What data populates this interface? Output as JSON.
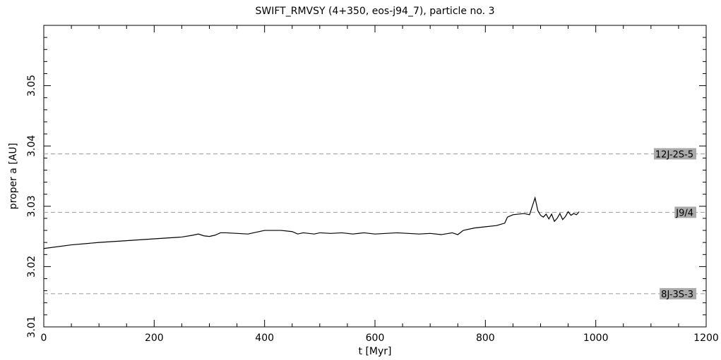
{
  "chart_data": {
    "type": "line",
    "title": "SWIFT_RMVSY (4+350, eos-j94_7), particle no. 3",
    "xlabel": "t [Myr]",
    "ylabel": "proper a [AU]",
    "xlim": [
      0,
      1200
    ],
    "ylim": [
      3.01,
      3.06
    ],
    "x_major_ticks": [
      0,
      200,
      400,
      600,
      800,
      1000,
      1200
    ],
    "x_tick_labels": [
      "0",
      "200",
      "400",
      "600",
      "800",
      "1000",
      "1200"
    ],
    "x_minor_step": 50,
    "y_major_ticks": [
      3.01,
      3.02,
      3.03,
      3.04,
      3.05
    ],
    "y_tick_labels": [
      "3.01",
      "3.02",
      "3.03",
      "3.04",
      "3.05"
    ],
    "y_minor_step": 0.002,
    "grid": false,
    "reference_lines": [
      {
        "label": "12J-2S-5",
        "y": 3.0387
      },
      {
        "label": "J9/4",
        "y": 3.029
      },
      {
        "label": "8J-3S-3",
        "y": 3.0155
      }
    ],
    "series": [
      {
        "x": [
          0,
          50,
          100,
          150,
          200,
          250,
          270,
          280,
          290,
          300,
          310,
          320,
          330,
          350,
          370,
          380,
          400,
          430,
          450,
          460,
          470,
          490,
          500,
          520,
          540,
          560,
          580,
          600,
          620,
          640,
          660,
          680,
          700,
          720,
          740,
          750,
          760,
          780,
          800,
          820,
          835,
          840,
          850,
          860,
          870,
          880,
          885,
          890,
          895,
          900,
          905,
          910,
          915,
          920,
          925,
          930,
          935,
          940,
          945,
          950,
          955,
          960,
          965,
          970
        ],
        "y": [
          3.023,
          3.0236,
          3.024,
          3.0243,
          3.0246,
          3.0249,
          3.0252,
          3.0254,
          3.0251,
          3.025,
          3.0252,
          3.0256,
          3.0256,
          3.0255,
          3.0254,
          3.0256,
          3.026,
          3.026,
          3.0258,
          3.0254,
          3.0256,
          3.0254,
          3.0256,
          3.0255,
          3.0256,
          3.0254,
          3.0256,
          3.0254,
          3.0255,
          3.0256,
          3.0255,
          3.0254,
          3.0255,
          3.0253,
          3.0256,
          3.0253,
          3.026,
          3.0264,
          3.0266,
          3.0268,
          3.0272,
          3.0282,
          3.0286,
          3.0287,
          3.0288,
          3.0286,
          3.03,
          3.0314,
          3.0293,
          3.0285,
          3.0282,
          3.0287,
          3.0279,
          3.0287,
          3.0275,
          3.028,
          3.0288,
          3.0278,
          3.0283,
          3.0291,
          3.0285,
          3.0288,
          3.0286,
          3.0291
        ]
      }
    ]
  }
}
